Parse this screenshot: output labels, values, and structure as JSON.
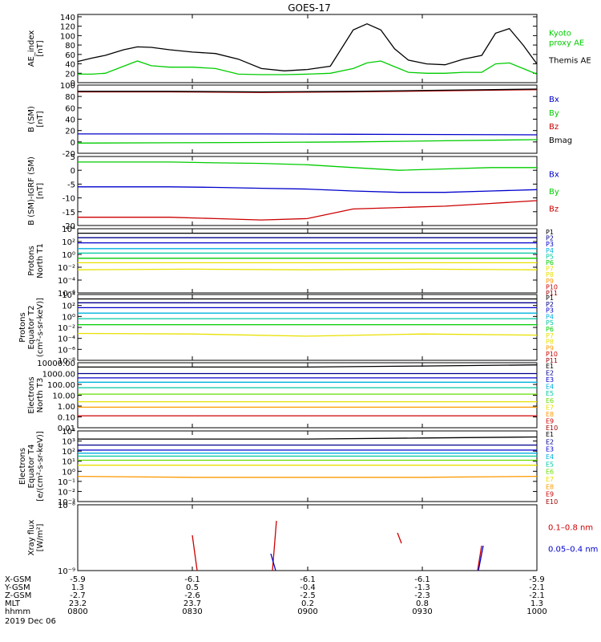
{
  "title": "GOES-17",
  "colors": {
    "black": "#000000",
    "green": "#00cc00",
    "blue": "#0000cc",
    "red": "#cc0000",
    "navy": "#00008b",
    "cyan": "#00b0e0",
    "teal": "#00c8a0",
    "yellow": "#e8e000",
    "orange": "#ff9900",
    "darkred": "#990000",
    "lime": "#66dd00"
  },
  "chart_data": [
    {
      "type": "line",
      "id": "ae",
      "ylabel": [
        "AE_index",
        "[nT]"
      ],
      "yticks": [
        "140",
        "120",
        "100",
        "80",
        "60",
        "40",
        "20",
        "0"
      ],
      "ylim": [
        0,
        145
      ],
      "x": [
        0,
        0.03,
        0.06,
        0.1,
        0.13,
        0.16,
        0.2,
        0.25,
        0.3,
        0.35,
        0.4,
        0.45,
        0.5,
        0.55,
        0.6,
        0.63,
        0.66,
        0.69,
        0.72,
        0.76,
        0.8,
        0.84,
        0.88,
        0.91,
        0.94,
        0.97,
        1.0
      ],
      "series": [
        {
          "name": "Kyoto\nproxy AE",
          "color": "green",
          "values": [
            18,
            18,
            20,
            35,
            46,
            36,
            33,
            33,
            30,
            18,
            17,
            17,
            18,
            20,
            30,
            42,
            46,
            34,
            22,
            20,
            20,
            22,
            22,
            40,
            42,
            30,
            18
          ]
        },
        {
          "name": "Themis AE",
          "color": "black",
          "values": [
            45,
            52,
            58,
            70,
            76,
            75,
            70,
            65,
            62,
            50,
            30,
            25,
            28,
            35,
            112,
            125,
            112,
            72,
            48,
            40,
            38,
            50,
            58,
            105,
            115,
            80,
            40
          ]
        }
      ]
    },
    {
      "type": "line",
      "id": "bsm",
      "ylabel": [
        "B (SM)",
        "[nT]"
      ],
      "yticks": [
        "100",
        "80",
        "60",
        "40",
        "20",
        "0",
        "-20"
      ],
      "ylim": [
        -20,
        100
      ],
      "x": [
        0,
        0.2,
        0.4,
        0.6,
        0.8,
        1.0
      ],
      "series": [
        {
          "name": "Bx",
          "color": "blue",
          "values": [
            14,
            14,
            14,
            13.5,
            13,
            12.5
          ]
        },
        {
          "name": "By",
          "color": "green",
          "values": [
            -2,
            -1.5,
            -1,
            0,
            2,
            4
          ]
        },
        {
          "name": "Bz",
          "color": "red",
          "values": [
            88,
            88,
            87,
            88,
            90,
            92
          ]
        },
        {
          "name": "Bmag",
          "color": "black",
          "values": [
            89,
            89,
            88,
            89,
            91,
            93
          ]
        }
      ]
    },
    {
      "type": "line",
      "id": "bigrf",
      "ylabel": [
        "B (SM)-IGRF (SM)",
        "[nT]"
      ],
      "yticks": [
        "5",
        "0",
        "-5",
        "-10",
        "-15",
        "-20"
      ],
      "ylim": [
        -20,
        5
      ],
      "x": [
        0,
        0.1,
        0.2,
        0.3,
        0.4,
        0.5,
        0.6,
        0.7,
        0.8,
        0.9,
        1.0
      ],
      "series": [
        {
          "name": "Bx",
          "color": "blue",
          "values": [
            -6,
            -6,
            -6,
            -6.2,
            -6.5,
            -6.8,
            -7.5,
            -8,
            -8,
            -7.5,
            -7
          ]
        },
        {
          "name": "By",
          "color": "green",
          "values": [
            3,
            3,
            3,
            2.7,
            2.5,
            2,
            1,
            0,
            0.5,
            1,
            1
          ]
        },
        {
          "name": "Bz",
          "color": "red",
          "values": [
            -17,
            -17,
            -17,
            -17.5,
            -18,
            -17.5,
            -14,
            -13.5,
            -13,
            -12,
            -11
          ]
        }
      ]
    },
    {
      "type": "line",
      "id": "pn",
      "ylabel": [
        "Protons",
        "North T1"
      ],
      "log": true,
      "ylim": [
        -6,
        4
      ],
      "ytick_exps": [
        4,
        2,
        0,
        -2,
        -4,
        -6
      ],
      "x": [
        0,
        0.25,
        0.5,
        0.75,
        1.0
      ],
      "series": [
        {
          "name": "P1",
          "color": "black",
          "values": [
            3.3,
            3.3,
            3.3,
            3.3,
            3.3
          ]
        },
        {
          "name": "P2",
          "color": "navy",
          "values": [
            2.6,
            2.6,
            2.6,
            2.6,
            2.6
          ]
        },
        {
          "name": "P3",
          "color": "blue",
          "values": [
            1.8,
            1.8,
            1.8,
            1.8,
            1.8
          ]
        },
        {
          "name": "P4",
          "color": "cyan",
          "values": [
            0.9,
            0.9,
            0.9,
            0.9,
            0.9
          ]
        },
        {
          "name": "P5",
          "color": "teal",
          "values": [
            0.2,
            0.2,
            0.2,
            0.2,
            0.2
          ]
        },
        {
          "name": "P6",
          "color": "green",
          "values": [
            -0.6,
            -0.6,
            -0.6,
            -0.6,
            -0.6
          ]
        },
        {
          "name": "P7",
          "color": "yellow",
          "values": [
            -1.3,
            -1.3,
            -1.3,
            -1.3,
            -1.3
          ]
        },
        {
          "name": "P8",
          "color": "yellow",
          "values": [
            -2.4,
            -2.3,
            -2.4,
            -2.3,
            -2.4
          ]
        }
      ],
      "legend": [
        "P1",
        "P2",
        "P3",
        "P4",
        "P5",
        "P6",
        "P7",
        "P8",
        "P9",
        "P10",
        "P11"
      ],
      "legend_colors": [
        "black",
        "navy",
        "blue",
        "cyan",
        "teal",
        "green",
        "yellow",
        "yellow",
        "orange",
        "red",
        "darkred"
      ]
    },
    {
      "type": "line",
      "id": "pe",
      "ylabel": [
        "Protons",
        "Equator T2",
        "(cm²-s-sr-keV)]"
      ],
      "log": true,
      "ylim": [
        -8,
        4
      ],
      "ytick_exps": [
        4,
        2,
        0,
        -2,
        -4,
        -6,
        -8
      ],
      "x": [
        0,
        0.25,
        0.5,
        0.75,
        1.0
      ],
      "series": [
        {
          "name": "P1",
          "color": "black",
          "values": [
            3.2,
            3.2,
            3.2,
            3.2,
            3.2
          ]
        },
        {
          "name": "P2",
          "color": "navy",
          "values": [
            2.5,
            2.5,
            2.5,
            2.5,
            2.5
          ]
        },
        {
          "name": "P3",
          "color": "blue",
          "values": [
            1.6,
            1.6,
            1.6,
            1.6,
            1.6
          ]
        },
        {
          "name": "P4",
          "color": "cyan",
          "values": [
            0.6,
            0.6,
            0.6,
            0.6,
            0.6
          ]
        },
        {
          "name": "P5",
          "color": "teal",
          "values": [
            -0.4,
            -0.4,
            -0.4,
            -0.4,
            -0.4
          ]
        },
        {
          "name": "P6",
          "color": "green",
          "values": [
            -1.5,
            -1.5,
            -1.5,
            -1.5,
            -1.5
          ]
        },
        {
          "name": "P7",
          "color": "yellow",
          "values": [
            -3.1,
            -3.2,
            -3.6,
            -3.2,
            -3.4
          ]
        }
      ],
      "legend": [
        "P1",
        "P2",
        "P3",
        "P4",
        "P5",
        "P6",
        "P7",
        "P8",
        "P9",
        "P10",
        "P11"
      ],
      "legend_colors": [
        "black",
        "navy",
        "blue",
        "cyan",
        "teal",
        "green",
        "yellow",
        "yellow",
        "orange",
        "red",
        "darkred"
      ]
    },
    {
      "type": "line",
      "id": "en",
      "ylabel": [
        "Electrons",
        "North T3"
      ],
      "log": true,
      "ylim": [
        -2,
        4
      ],
      "yticks": [
        "10000.00",
        "1000.00",
        "100.00",
        "10.00",
        "1.00",
        "0.10",
        "0.01"
      ],
      "x": [
        0,
        0.25,
        0.5,
        0.75,
        1.0
      ],
      "series": [
        {
          "name": "E1",
          "color": "black",
          "values": [
            3.6,
            3.6,
            3.6,
            3.7,
            3.8
          ]
        },
        {
          "name": "E2",
          "color": "navy",
          "values": [
            3.0,
            3.0,
            3.0,
            3.0,
            3.0
          ]
        },
        {
          "name": "E3",
          "color": "blue",
          "values": [
            2.6,
            2.6,
            2.6,
            2.6,
            2.6
          ]
        },
        {
          "name": "E4",
          "color": "cyan",
          "values": [
            2.2,
            2.2,
            2.2,
            2.2,
            2.2
          ]
        },
        {
          "name": "E5",
          "color": "teal",
          "values": [
            1.7,
            1.7,
            1.7,
            1.7,
            1.7
          ]
        },
        {
          "name": "E6",
          "color": "lime",
          "values": [
            1.1,
            1.1,
            1.1,
            1.1,
            1.1
          ]
        },
        {
          "name": "E7",
          "color": "yellow",
          "values": [
            0.4,
            0.4,
            0.4,
            0.4,
            0.4
          ]
        },
        {
          "name": "E8",
          "color": "orange",
          "values": [
            -0.1,
            -0.1,
            -0.1,
            -0.1,
            -0.1
          ]
        },
        {
          "name": "E9",
          "color": "red",
          "values": [
            -0.9,
            -0.9,
            -0.9,
            -0.9,
            -0.9
          ]
        }
      ],
      "legend": [
        "E1",
        "E2",
        "E3",
        "E4",
        "E5",
        "E6",
        "E7",
        "E8",
        "E9",
        "E10"
      ],
      "legend_colors": [
        "black",
        "navy",
        "blue",
        "cyan",
        "teal",
        "lime",
        "yellow",
        "orange",
        "red",
        "darkred"
      ]
    },
    {
      "type": "line",
      "id": "ee",
      "ylabel": [
        "Electrons",
        "Equator T4",
        "[e/(cm²-s-sr-keV)]"
      ],
      "log": true,
      "ylim": [
        -3,
        4
      ],
      "ytick_exps": [
        4,
        3,
        2,
        1,
        0,
        -1,
        -2,
        -3
      ],
      "x": [
        0,
        0.25,
        0.5,
        0.75,
        1.0
      ],
      "series": [
        {
          "name": "E1",
          "color": "black",
          "values": [
            3.2,
            3.2,
            3.2,
            3.3,
            3.4
          ]
        },
        {
          "name": "E2",
          "color": "navy",
          "values": [
            2.6,
            2.6,
            2.6,
            2.6,
            2.6
          ]
        },
        {
          "name": "E3",
          "color": "blue",
          "values": [
            2.1,
            2.1,
            2.1,
            2.1,
            2.1
          ]
        },
        {
          "name": "E4",
          "color": "cyan",
          "values": [
            1.8,
            1.8,
            1.8,
            1.8,
            1.8
          ]
        },
        {
          "name": "E5",
          "color": "teal",
          "values": [
            1.5,
            1.5,
            1.5,
            1.5,
            1.5
          ]
        },
        {
          "name": "E6",
          "color": "lime",
          "values": [
            1.1,
            1.1,
            1.1,
            1.1,
            1.1
          ]
        },
        {
          "name": "E7",
          "color": "yellow",
          "values": [
            0.6,
            0.6,
            0.6,
            0.6,
            0.6
          ]
        },
        {
          "name": "E8",
          "color": "orange",
          "values": [
            -0.5,
            -0.6,
            -0.6,
            -0.6,
            -0.5
          ]
        }
      ],
      "legend": [
        "E1",
        "E2",
        "E3",
        "E4",
        "E5",
        "E6",
        "E7",
        "E8",
        "E9",
        "E10"
      ],
      "legend_colors": [
        "black",
        "navy",
        "blue",
        "cyan",
        "teal",
        "lime",
        "yellow",
        "orange",
        "red",
        "darkred"
      ]
    },
    {
      "type": "line",
      "id": "xray",
      "ylabel": [
        "Xray flux",
        "[W/m²]"
      ],
      "log": true,
      "ylim": [
        -9,
        -8
      ],
      "ytick_exps": [
        -8,
        -9
      ],
      "series": [
        {
          "name": "0.1–0.8 nm",
          "color": "red"
        },
        {
          "name": "0.05–0.4 nm",
          "color": "blue"
        }
      ]
    }
  ],
  "xaxis": {
    "rows": [
      {
        "label": "X-GSM",
        "values": [
          "-5.9",
          "-6.1",
          "-6.1",
          "-6.1",
          "-5.9"
        ]
      },
      {
        "label": "Y-GSM",
        "values": [
          "1.3",
          "0.5",
          "-0.4",
          "-1.3",
          "-2.1"
        ]
      },
      {
        "label": "Z-GSM",
        "values": [
          "-2.7",
          "-2.6",
          "-2.5",
          "-2.3",
          "-2.1"
        ]
      },
      {
        "label": "MLT",
        "values": [
          "23.2",
          "23.7",
          "0.2",
          "0.8",
          "1.3"
        ]
      },
      {
        "label": "hhmm",
        "values": [
          "0800",
          "0830",
          "0900",
          "0930",
          "1000"
        ]
      }
    ],
    "date": "2019 Dec 06"
  }
}
